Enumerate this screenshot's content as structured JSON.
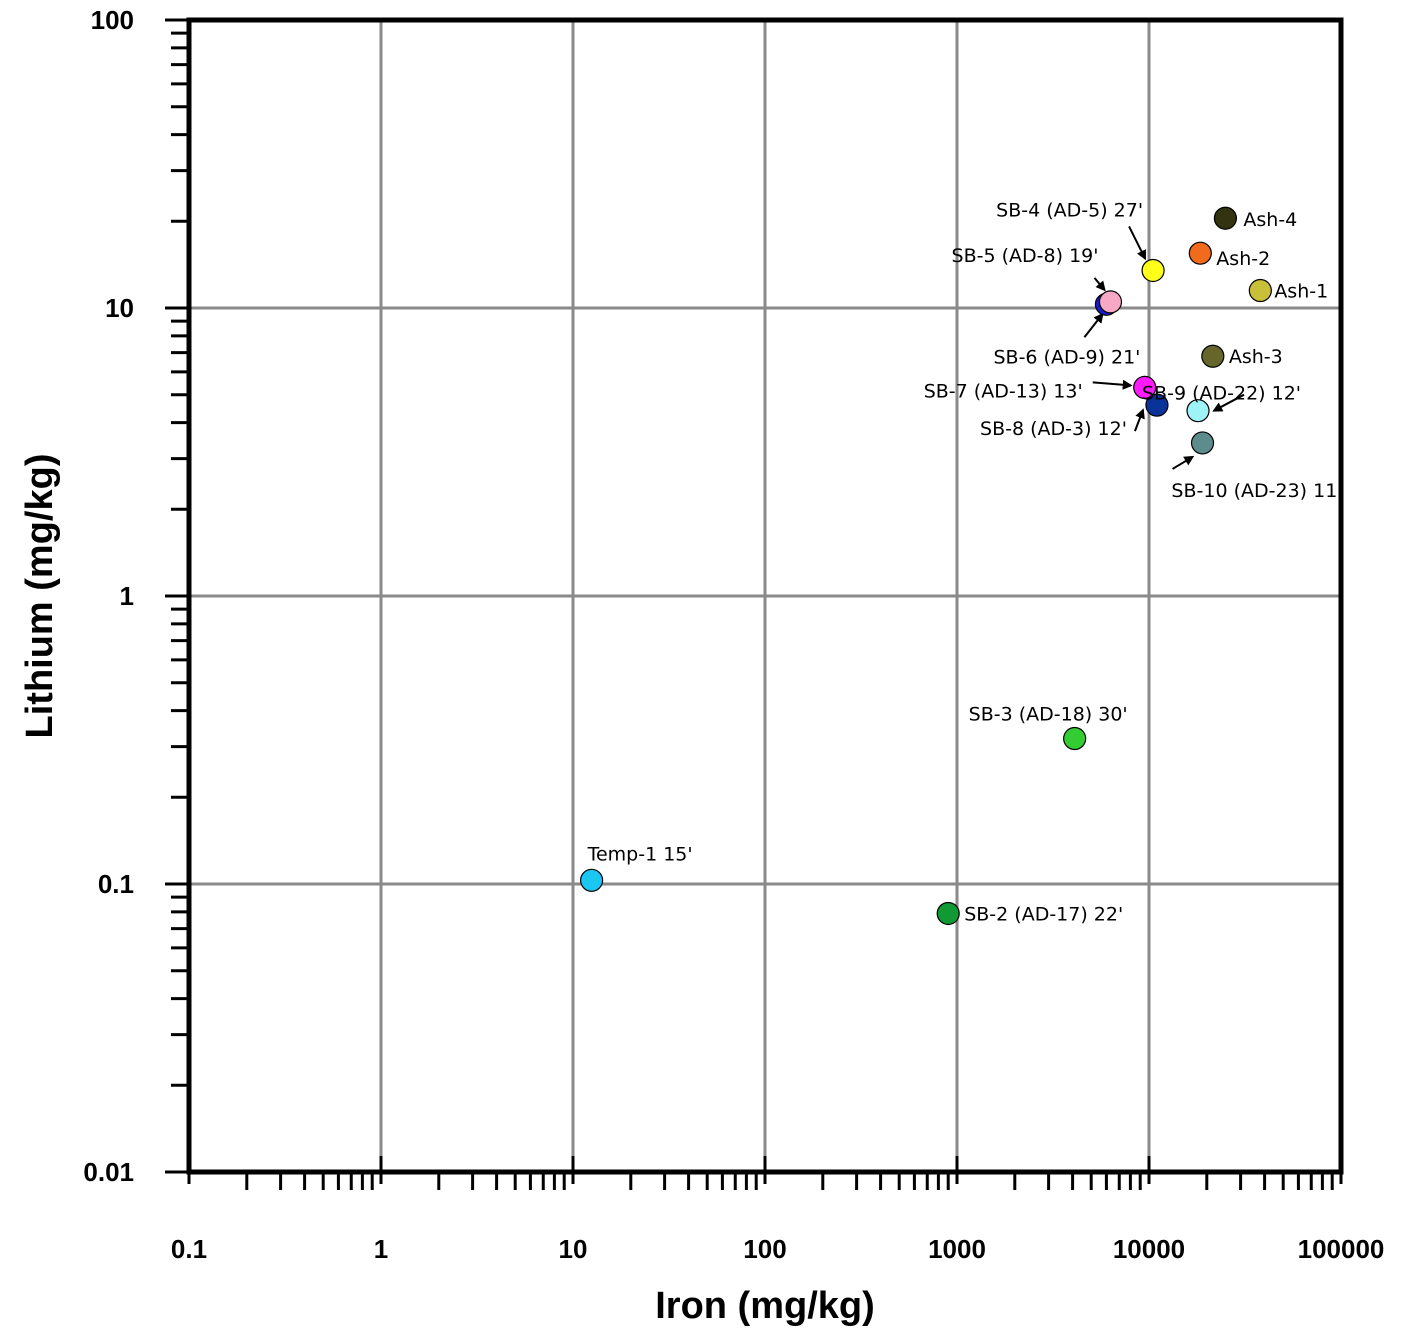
{
  "chart_data": {
    "type": "scatter",
    "x_scale": "log",
    "y_scale": "log",
    "xlim": [
      0.1,
      100000
    ],
    "ylim": [
      0.01,
      100
    ],
    "xlabel": "Iron (mg/kg)",
    "ylabel": "Lithium (mg/kg)",
    "x_tick_labels": [
      "0.1",
      "1",
      "10",
      "100",
      "1000",
      "10000",
      "100000"
    ],
    "y_tick_labels": [
      "0.01",
      "0.1",
      "1",
      "10",
      "100"
    ],
    "grid": true,
    "points": [
      {
        "label": "Ash-4",
        "x": 25000,
        "y": 20.5,
        "color": "#333311"
      },
      {
        "label": "Ash-2",
        "x": 18500,
        "y": 15.5,
        "color": "#f26a1b"
      },
      {
        "label": "Ash-1",
        "x": 38000,
        "y": 11.5,
        "color": "#c9c03a"
      },
      {
        "label": "SB-4 (AD-5) 27'",
        "x": 10500,
        "y": 13.5,
        "color": "#ffff1a"
      },
      {
        "label": "SB-6 (AD-9) 21'",
        "x": 6000,
        "y": 10.3,
        "color": "#1a1acc"
      },
      {
        "label": "SB-5 (AD-8) 19'",
        "x": 6300,
        "y": 10.5,
        "color": "#f7a8c4"
      },
      {
        "label": "Ash-3",
        "x": 21500,
        "y": 6.8,
        "color": "#66662a"
      },
      {
        "label": "SB-7 (AD-13) 13'",
        "x": 9500,
        "y": 5.3,
        "color": "#ff1aff"
      },
      {
        "label": "SB-8 (AD-3) 12'",
        "x": 11000,
        "y": 4.6,
        "color": "#0a3399"
      },
      {
        "label": "SB-9 (AD-22) 12'",
        "x": 18000,
        "y": 4.4,
        "color": "#9ef3f7"
      },
      {
        "label": "SB-10 (AD-23) 11'",
        "x": 19000,
        "y": 3.4,
        "color": "#5c8c8c"
      },
      {
        "label": "SB-3 (AD-18) 30'",
        "x": 4100,
        "y": 0.32,
        "color": "#33cc33"
      },
      {
        "label": "Temp-1 15'",
        "x": 12.5,
        "y": 0.103,
        "color": "#1ac6f2"
      },
      {
        "label": "SB-2 (AD-17) 22'",
        "x": 900,
        "y": 0.079,
        "color": "#119933"
      }
    ]
  }
}
